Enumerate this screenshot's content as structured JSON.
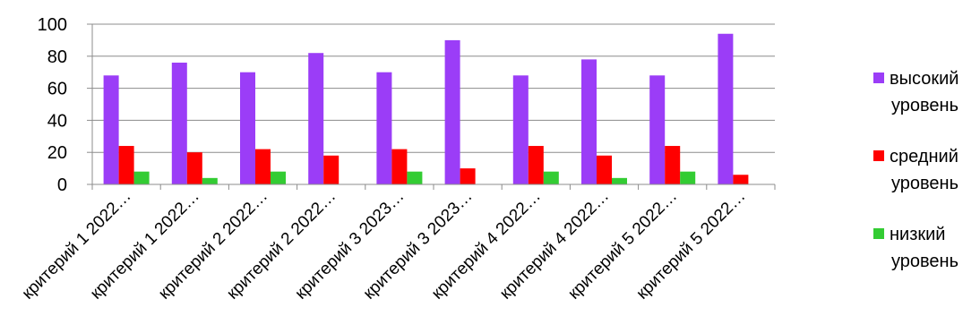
{
  "chart_data": {
    "type": "bar",
    "title": "",
    "xlabel": "",
    "ylabel": "",
    "ylim": [
      0,
      100
    ],
    "yticks": [
      0,
      20,
      40,
      60,
      80,
      100
    ],
    "grid": true,
    "legend_position": "right",
    "categories": [
      "критерий 1 2022…",
      "критерий 1 2022…",
      "критерий 2 2022…",
      "критерий 2 2022…",
      "критерий 3 2023…",
      "критерий 3 2023…",
      "критерий 4 2022…",
      "критерий 4 2022…",
      "критерий 5 2022…",
      "критерий 5 2022…"
    ],
    "series": [
      {
        "name": "высокий уровень",
        "name_lines": [
          "высокий",
          "уровень"
        ],
        "color": "#9b3df7",
        "values": [
          68,
          76,
          70,
          82,
          70,
          90,
          68,
          78,
          68,
          94
        ]
      },
      {
        "name": "средний уровень",
        "name_lines": [
          "средний",
          "уровень"
        ],
        "color": "#ff0000",
        "values": [
          24,
          20,
          22,
          18,
          22,
          10,
          24,
          18,
          24,
          6
        ]
      },
      {
        "name": "низкий уровень",
        "name_lines": [
          "низкий",
          "уровень"
        ],
        "color": "#33cc33",
        "values": [
          8,
          4,
          8,
          0,
          8,
          0,
          8,
          4,
          8,
          0
        ]
      }
    ]
  }
}
